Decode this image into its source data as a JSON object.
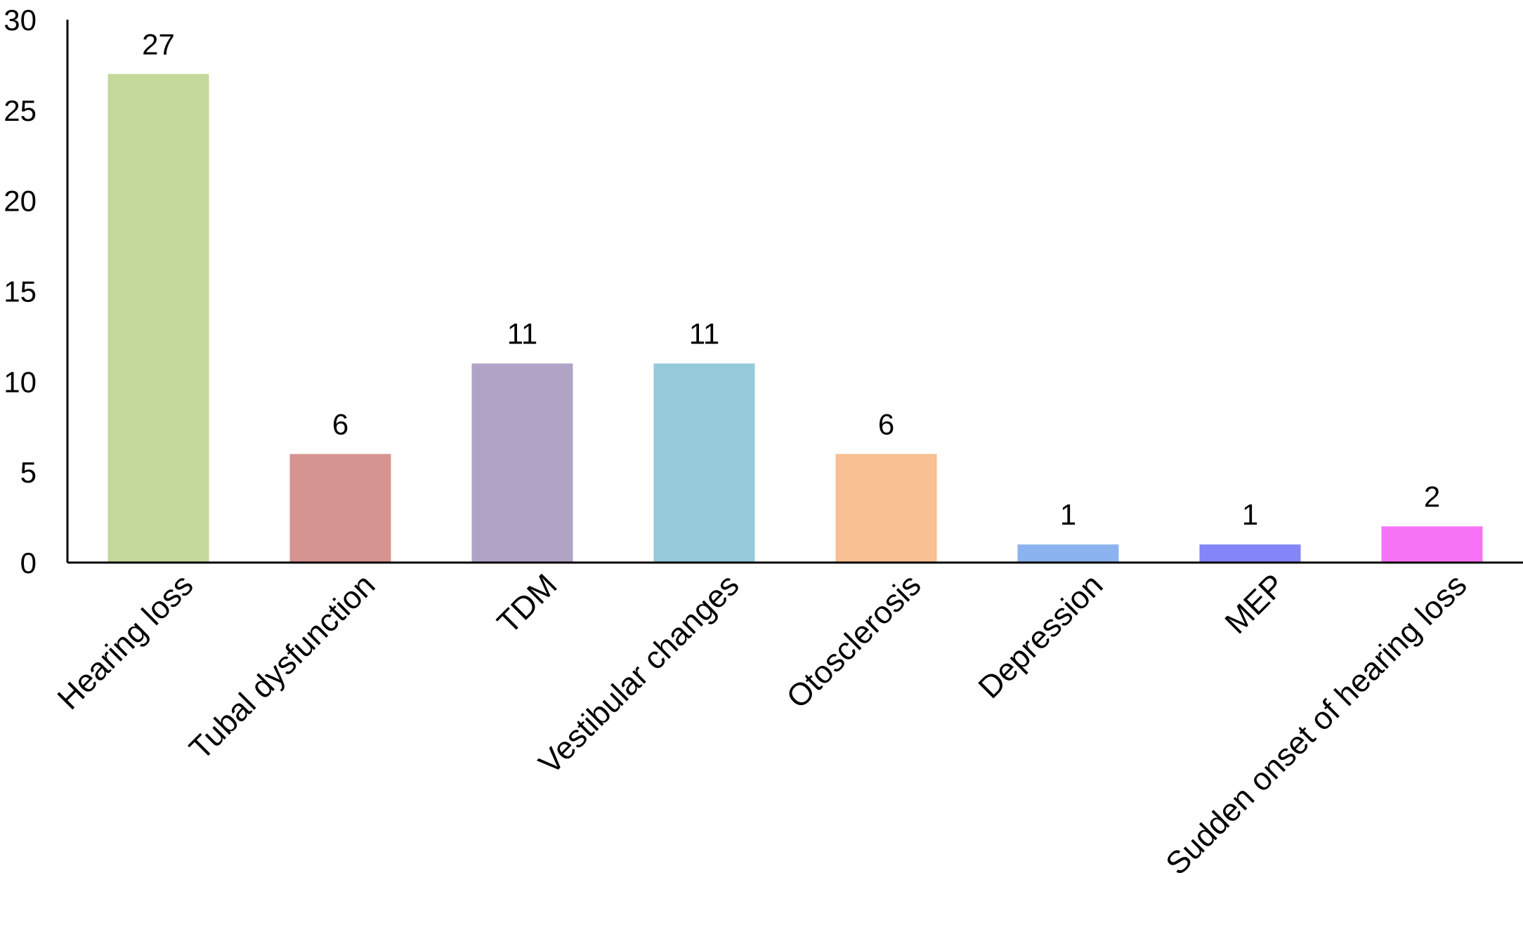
{
  "chart_data": {
    "type": "bar",
    "title": "",
    "xlabel": "",
    "ylabel": "",
    "ylim": [
      0,
      30
    ],
    "yticks": [
      0,
      5,
      10,
      15,
      20,
      25,
      30
    ],
    "grid": false,
    "legend": "none",
    "categories": [
      "Hearing loss",
      "Tubal dysfunction",
      "TDM",
      "Vestibular changes",
      "Otosclerosis",
      "Depression",
      "MEP",
      "Sudden onset of hearing loss"
    ],
    "values": [
      27,
      6,
      11,
      11,
      6,
      1,
      1,
      2
    ],
    "data_labels": [
      "27",
      "6",
      "11",
      "11",
      "6",
      "1",
      "1",
      "2"
    ],
    "colors": [
      "#c4d89c",
      "#d69491",
      "#b1a3c6",
      "#95cadb",
      "#f7bf92",
      "#8ab3ef",
      "#8385f8",
      "#f773f6"
    ],
    "axis_color": "#000000"
  }
}
